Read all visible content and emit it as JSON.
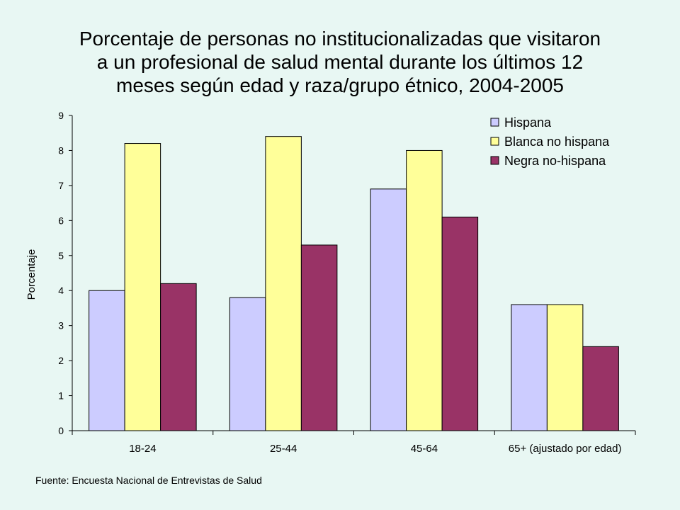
{
  "title_lines": [
    "Porcentaje de personas no institucionalizadas que visitaron",
    "a un profesional de salud mental durante los últimos 12",
    "meses según edad y raza/grupo étnico, 2004-2005"
  ],
  "source": "Fuente: Encuesta Nacional de Entrevistas de Salud",
  "chart_data": {
    "type": "bar",
    "title": "Porcentaje de personas no institucionalizadas que visitaron a un profesional de salud mental durante los últimos 12 meses según edad y raza/grupo étnico, 2004-2005",
    "xlabel": "",
    "ylabel": "Porcentaje",
    "ylim": [
      0,
      9
    ],
    "yticks": [
      0,
      1,
      2,
      3,
      4,
      5,
      6,
      7,
      8,
      9
    ],
    "grid": false,
    "legend_position": "top-right",
    "categories": [
      "18-24",
      "25-44",
      "45-64",
      "65+ (ajustado por edad)"
    ],
    "series": [
      {
        "name": "Hispana",
        "color": "#ccccff",
        "values": [
          4.0,
          3.8,
          6.9,
          3.6
        ]
      },
      {
        "name": "Blanca no hispana",
        "color": "#ffff99",
        "values": [
          8.2,
          8.4,
          8.0,
          3.6
        ]
      },
      {
        "name": "Negra no-hispana",
        "color": "#993366",
        "values": [
          4.2,
          5.3,
          6.1,
          2.4
        ]
      }
    ]
  }
}
